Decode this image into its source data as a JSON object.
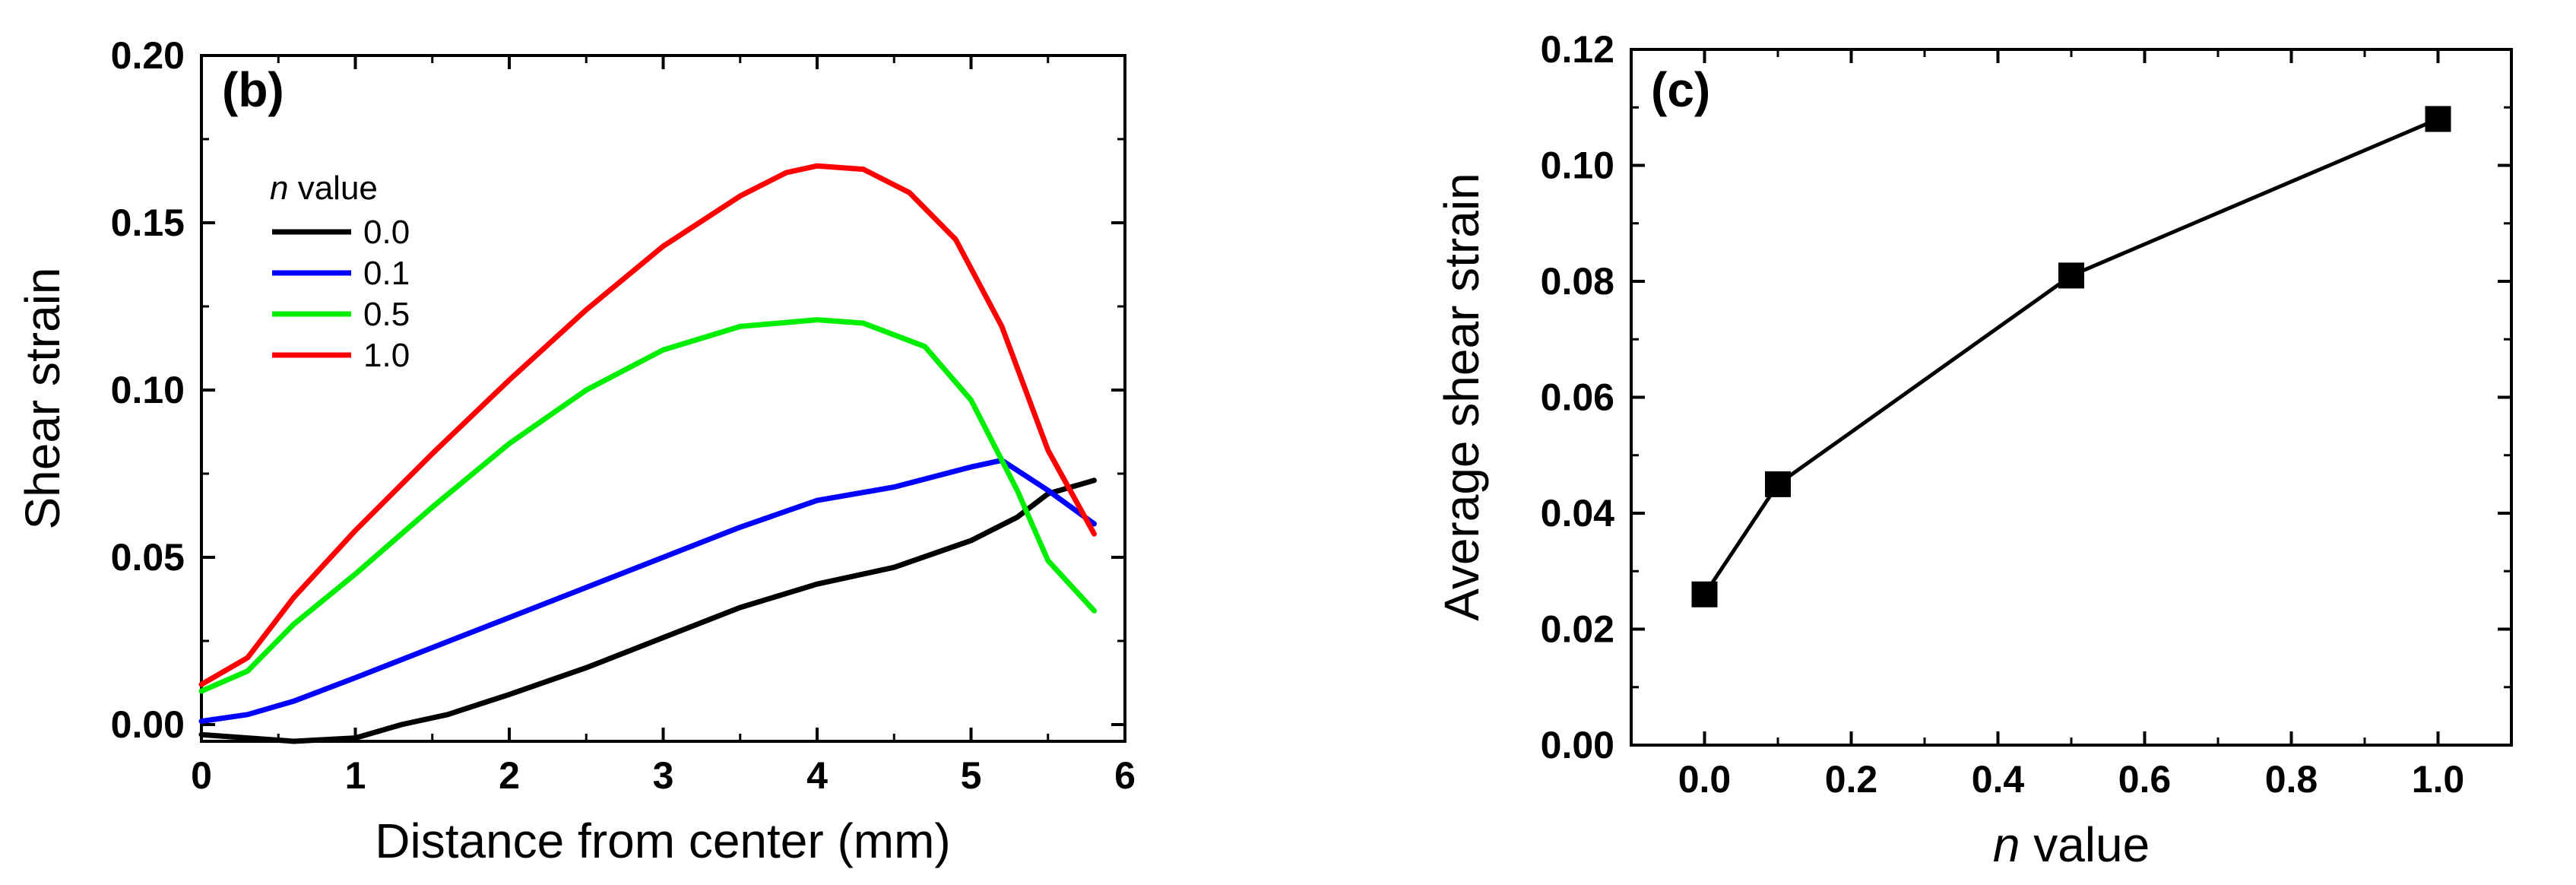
{
  "chart_data": [
    {
      "panel_label": "(b)",
      "type": "line",
      "xlabel": "Distance from center (mm)",
      "ylabel": "Shear strain",
      "xlim": [
        0,
        6
      ],
      "ylim": [
        -0.005,
        0.2
      ],
      "x_ticks": [
        "0",
        "1",
        "2",
        "3",
        "4",
        "5",
        "6"
      ],
      "y_ticks": [
        "0.00",
        "0.05",
        "0.10",
        "0.15",
        "0.20"
      ],
      "legend": {
        "title_italic": "n",
        "title_rest": " value",
        "placement": "top-left"
      },
      "series": [
        {
          "name": "0.0",
          "color": "#000000",
          "x": [
            0,
            0.3,
            0.6,
            1.0,
            1.3,
            1.6,
            2.0,
            2.5,
            3.0,
            3.5,
            4.0,
            4.5,
            5.0,
            5.3,
            5.5,
            5.8
          ],
          "y": [
            -0.003,
            -0.004,
            -0.005,
            -0.004,
            0.0,
            0.003,
            0.009,
            0.017,
            0.026,
            0.035,
            0.042,
            0.047,
            0.055,
            0.062,
            0.069,
            0.073
          ]
        },
        {
          "name": "0.1",
          "color": "#0000ff",
          "x": [
            0,
            0.3,
            0.6,
            1.0,
            1.5,
            2.0,
            2.5,
            3.0,
            3.5,
            4.0,
            4.5,
            5.0,
            5.2,
            5.5,
            5.8
          ],
          "y": [
            0.001,
            0.003,
            0.007,
            0.014,
            0.023,
            0.032,
            0.041,
            0.05,
            0.059,
            0.067,
            0.071,
            0.077,
            0.079,
            0.07,
            0.06
          ]
        },
        {
          "name": "0.5",
          "color": "#00ee00",
          "x": [
            0,
            0.3,
            0.6,
            1.0,
            1.5,
            2.0,
            2.5,
            3.0,
            3.5,
            4.0,
            4.3,
            4.7,
            5.0,
            5.3,
            5.5,
            5.8
          ],
          "y": [
            0.01,
            0.016,
            0.03,
            0.045,
            0.065,
            0.084,
            0.1,
            0.112,
            0.119,
            0.121,
            0.12,
            0.113,
            0.097,
            0.07,
            0.049,
            0.034
          ]
        },
        {
          "name": "1.0",
          "color": "#ff0000",
          "x": [
            0,
            0.3,
            0.6,
            1.0,
            1.5,
            2.0,
            2.5,
            3.0,
            3.5,
            3.8,
            4.0,
            4.3,
            4.6,
            4.9,
            5.2,
            5.5,
            5.8
          ],
          "y": [
            0.012,
            0.02,
            0.038,
            0.058,
            0.081,
            0.103,
            0.124,
            0.143,
            0.158,
            0.165,
            0.167,
            0.166,
            0.159,
            0.145,
            0.119,
            0.082,
            0.057
          ]
        }
      ]
    },
    {
      "panel_label": "(c)",
      "type": "line",
      "markers": "square",
      "xlabel_italic": "n",
      "xlabel_rest": " value",
      "ylabel": "Average shear strain",
      "xlim": [
        -0.1,
        1.1
      ],
      "ylim": [
        0,
        0.12
      ],
      "x_ticks": [
        "0.0",
        "0.2",
        "0.4",
        "0.6",
        "0.8",
        "1.0"
      ],
      "y_ticks": [
        "0.00",
        "0.02",
        "0.04",
        "0.06",
        "0.08",
        "0.10",
        "0.12"
      ],
      "series": [
        {
          "name": "Average shear strain",
          "color": "#000000",
          "x": [
            0.0,
            0.1,
            0.5,
            1.0
          ],
          "y": [
            0.026,
            0.045,
            0.081,
            0.108
          ]
        }
      ]
    }
  ]
}
